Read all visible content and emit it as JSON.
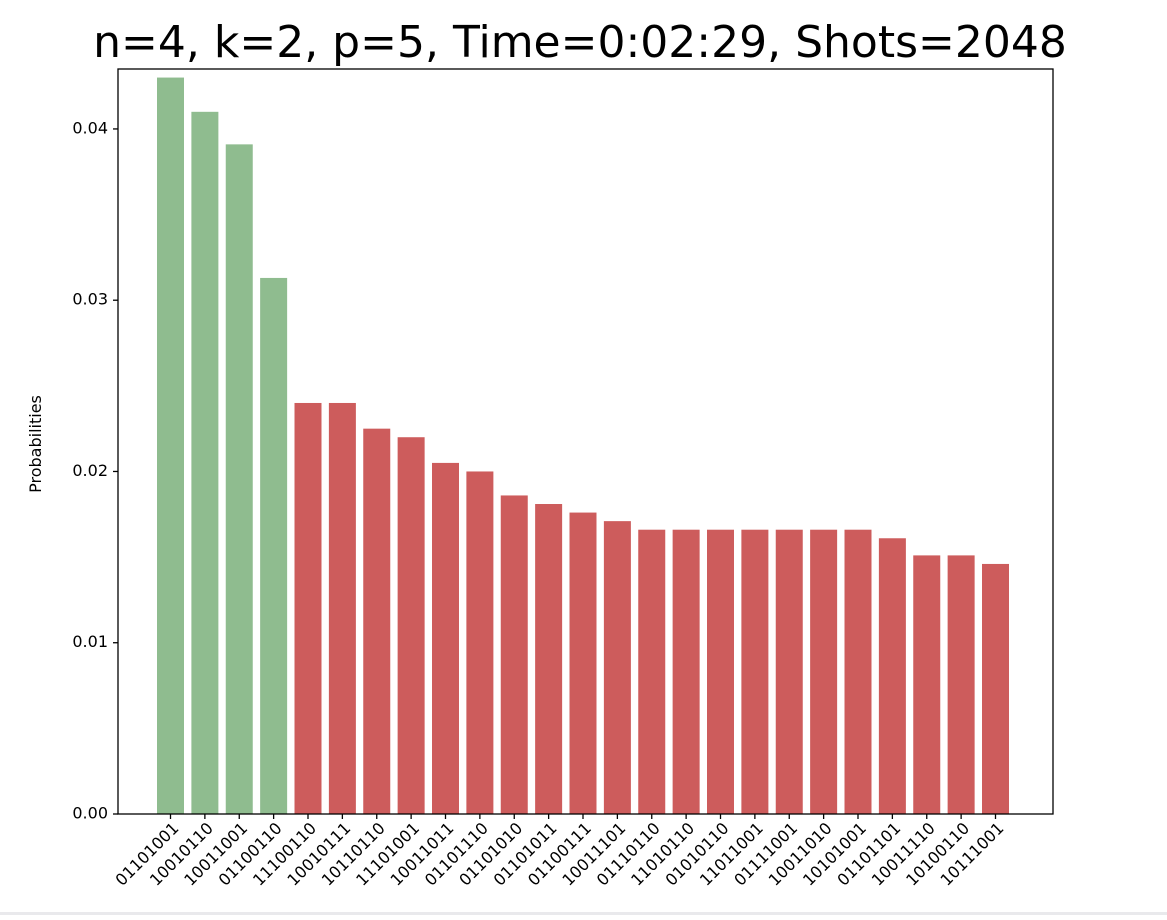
{
  "chart_data": {
    "type": "bar",
    "title": "n=4, k=2, p=5, Time=0:02:29, Shots=2048",
    "xlabel": "",
    "ylabel": "Probabilities",
    "ylim": [
      0,
      0.0435
    ],
    "yticks": [
      "0.00",
      "0.01",
      "0.02",
      "0.03",
      "0.04"
    ],
    "ytick_values": [
      0,
      0.01,
      0.02,
      0.03,
      0.04
    ],
    "grid": false,
    "categories": [
      "01101001",
      "10010110",
      "10011001",
      "01100110",
      "11100110",
      "10010111",
      "10110110",
      "11101001",
      "10011011",
      "01101110",
      "01101010",
      "01101011",
      "01100111",
      "10011101",
      "01110110",
      "11010110",
      "01010110",
      "11011001",
      "01111001",
      "10011010",
      "10101001",
      "01101101",
      "10011110",
      "10100110",
      "10111001"
    ],
    "values": [
      0.043,
      0.041,
      0.0391,
      0.0313,
      0.024,
      0.024,
      0.0225,
      0.022,
      0.0205,
      0.02,
      0.0186,
      0.0181,
      0.0176,
      0.0171,
      0.0166,
      0.0166,
      0.0166,
      0.0166,
      0.0166,
      0.0166,
      0.0166,
      0.0161,
      0.0151,
      0.0151,
      0.0146
    ],
    "bar_colors": [
      "#8fbc8f",
      "#8fbc8f",
      "#8fbc8f",
      "#8fbc8f",
      "#cd5c5c",
      "#cd5c5c",
      "#cd5c5c",
      "#cd5c5c",
      "#cd5c5c",
      "#cd5c5c",
      "#cd5c5c",
      "#cd5c5c",
      "#cd5c5c",
      "#cd5c5c",
      "#cd5c5c",
      "#cd5c5c",
      "#cd5c5c",
      "#cd5c5c",
      "#cd5c5c",
      "#cd5c5c",
      "#cd5c5c",
      "#cd5c5c",
      "#cd5c5c",
      "#cd5c5c",
      "#cd5c5c"
    ],
    "colors": {
      "highlight": "#8fbc8f",
      "default": "#cd5c5c"
    }
  }
}
